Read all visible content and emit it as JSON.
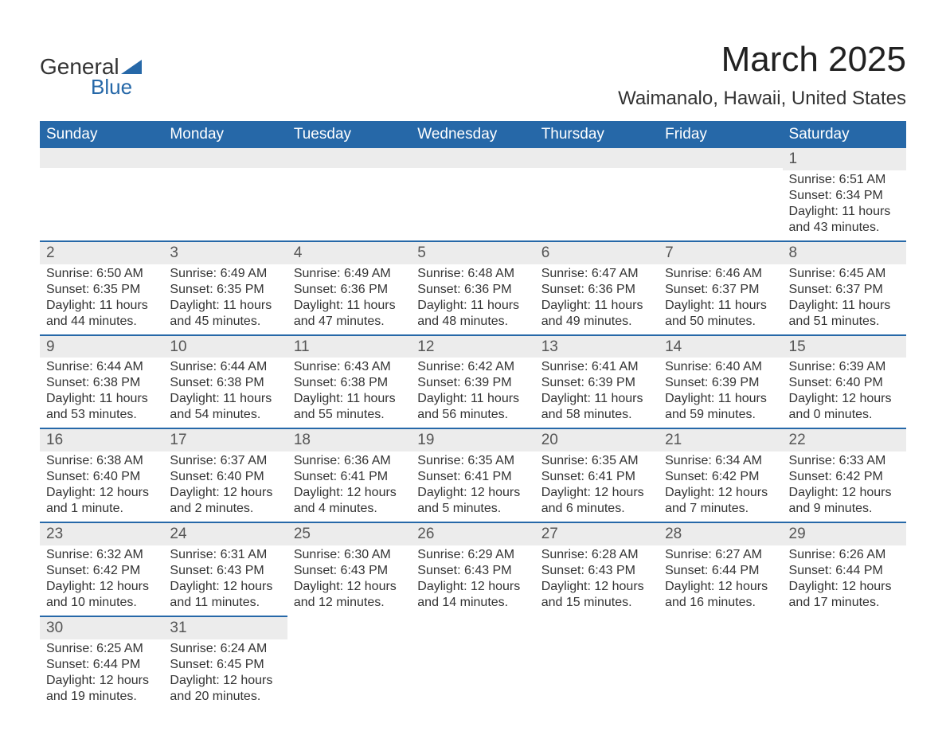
{
  "logo": {
    "general": "General",
    "blue": "Blue",
    "triangle_color": "#2668a8"
  },
  "title": "March 2025",
  "location": "Waimanalo, Hawaii, United States",
  "header_bg": "#2668a8",
  "header_fg": "#ffffff",
  "daynum_bg": "#ececec",
  "row_border": "#2668a8",
  "daynames": [
    "Sunday",
    "Monday",
    "Tuesday",
    "Wednesday",
    "Thursday",
    "Friday",
    "Saturday"
  ],
  "weeks": [
    [
      null,
      null,
      null,
      null,
      null,
      null,
      {
        "n": "1",
        "sr": "Sunrise: 6:51 AM",
        "ss": "Sunset: 6:34 PM",
        "d1": "Daylight: 11 hours",
        "d2": "and 43 minutes."
      }
    ],
    [
      {
        "n": "2",
        "sr": "Sunrise: 6:50 AM",
        "ss": "Sunset: 6:35 PM",
        "d1": "Daylight: 11 hours",
        "d2": "and 44 minutes."
      },
      {
        "n": "3",
        "sr": "Sunrise: 6:49 AM",
        "ss": "Sunset: 6:35 PM",
        "d1": "Daylight: 11 hours",
        "d2": "and 45 minutes."
      },
      {
        "n": "4",
        "sr": "Sunrise: 6:49 AM",
        "ss": "Sunset: 6:36 PM",
        "d1": "Daylight: 11 hours",
        "d2": "and 47 minutes."
      },
      {
        "n": "5",
        "sr": "Sunrise: 6:48 AM",
        "ss": "Sunset: 6:36 PM",
        "d1": "Daylight: 11 hours",
        "d2": "and 48 minutes."
      },
      {
        "n": "6",
        "sr": "Sunrise: 6:47 AM",
        "ss": "Sunset: 6:36 PM",
        "d1": "Daylight: 11 hours",
        "d2": "and 49 minutes."
      },
      {
        "n": "7",
        "sr": "Sunrise: 6:46 AM",
        "ss": "Sunset: 6:37 PM",
        "d1": "Daylight: 11 hours",
        "d2": "and 50 minutes."
      },
      {
        "n": "8",
        "sr": "Sunrise: 6:45 AM",
        "ss": "Sunset: 6:37 PM",
        "d1": "Daylight: 11 hours",
        "d2": "and 51 minutes."
      }
    ],
    [
      {
        "n": "9",
        "sr": "Sunrise: 6:44 AM",
        "ss": "Sunset: 6:38 PM",
        "d1": "Daylight: 11 hours",
        "d2": "and 53 minutes."
      },
      {
        "n": "10",
        "sr": "Sunrise: 6:44 AM",
        "ss": "Sunset: 6:38 PM",
        "d1": "Daylight: 11 hours",
        "d2": "and 54 minutes."
      },
      {
        "n": "11",
        "sr": "Sunrise: 6:43 AM",
        "ss": "Sunset: 6:38 PM",
        "d1": "Daylight: 11 hours",
        "d2": "and 55 minutes."
      },
      {
        "n": "12",
        "sr": "Sunrise: 6:42 AM",
        "ss": "Sunset: 6:39 PM",
        "d1": "Daylight: 11 hours",
        "d2": "and 56 minutes."
      },
      {
        "n": "13",
        "sr": "Sunrise: 6:41 AM",
        "ss": "Sunset: 6:39 PM",
        "d1": "Daylight: 11 hours",
        "d2": "and 58 minutes."
      },
      {
        "n": "14",
        "sr": "Sunrise: 6:40 AM",
        "ss": "Sunset: 6:39 PM",
        "d1": "Daylight: 11 hours",
        "d2": "and 59 minutes."
      },
      {
        "n": "15",
        "sr": "Sunrise: 6:39 AM",
        "ss": "Sunset: 6:40 PM",
        "d1": "Daylight: 12 hours",
        "d2": "and 0 minutes."
      }
    ],
    [
      {
        "n": "16",
        "sr": "Sunrise: 6:38 AM",
        "ss": "Sunset: 6:40 PM",
        "d1": "Daylight: 12 hours",
        "d2": "and 1 minute."
      },
      {
        "n": "17",
        "sr": "Sunrise: 6:37 AM",
        "ss": "Sunset: 6:40 PM",
        "d1": "Daylight: 12 hours",
        "d2": "and 2 minutes."
      },
      {
        "n": "18",
        "sr": "Sunrise: 6:36 AM",
        "ss": "Sunset: 6:41 PM",
        "d1": "Daylight: 12 hours",
        "d2": "and 4 minutes."
      },
      {
        "n": "19",
        "sr": "Sunrise: 6:35 AM",
        "ss": "Sunset: 6:41 PM",
        "d1": "Daylight: 12 hours",
        "d2": "and 5 minutes."
      },
      {
        "n": "20",
        "sr": "Sunrise: 6:35 AM",
        "ss": "Sunset: 6:41 PM",
        "d1": "Daylight: 12 hours",
        "d2": "and 6 minutes."
      },
      {
        "n": "21",
        "sr": "Sunrise: 6:34 AM",
        "ss": "Sunset: 6:42 PM",
        "d1": "Daylight: 12 hours",
        "d2": "and 7 minutes."
      },
      {
        "n": "22",
        "sr": "Sunrise: 6:33 AM",
        "ss": "Sunset: 6:42 PM",
        "d1": "Daylight: 12 hours",
        "d2": "and 9 minutes."
      }
    ],
    [
      {
        "n": "23",
        "sr": "Sunrise: 6:32 AM",
        "ss": "Sunset: 6:42 PM",
        "d1": "Daylight: 12 hours",
        "d2": "and 10 minutes."
      },
      {
        "n": "24",
        "sr": "Sunrise: 6:31 AM",
        "ss": "Sunset: 6:43 PM",
        "d1": "Daylight: 12 hours",
        "d2": "and 11 minutes."
      },
      {
        "n": "25",
        "sr": "Sunrise: 6:30 AM",
        "ss": "Sunset: 6:43 PM",
        "d1": "Daylight: 12 hours",
        "d2": "and 12 minutes."
      },
      {
        "n": "26",
        "sr": "Sunrise: 6:29 AM",
        "ss": "Sunset: 6:43 PM",
        "d1": "Daylight: 12 hours",
        "d2": "and 14 minutes."
      },
      {
        "n": "27",
        "sr": "Sunrise: 6:28 AM",
        "ss": "Sunset: 6:43 PM",
        "d1": "Daylight: 12 hours",
        "d2": "and 15 minutes."
      },
      {
        "n": "28",
        "sr": "Sunrise: 6:27 AM",
        "ss": "Sunset: 6:44 PM",
        "d1": "Daylight: 12 hours",
        "d2": "and 16 minutes."
      },
      {
        "n": "29",
        "sr": "Sunrise: 6:26 AM",
        "ss": "Sunset: 6:44 PM",
        "d1": "Daylight: 12 hours",
        "d2": "and 17 minutes."
      }
    ],
    [
      {
        "n": "30",
        "sr": "Sunrise: 6:25 AM",
        "ss": "Sunset: 6:44 PM",
        "d1": "Daylight: 12 hours",
        "d2": "and 19 minutes."
      },
      {
        "n": "31",
        "sr": "Sunrise: 6:24 AM",
        "ss": "Sunset: 6:45 PM",
        "d1": "Daylight: 12 hours",
        "d2": "and 20 minutes."
      },
      null,
      null,
      null,
      null,
      null
    ]
  ]
}
